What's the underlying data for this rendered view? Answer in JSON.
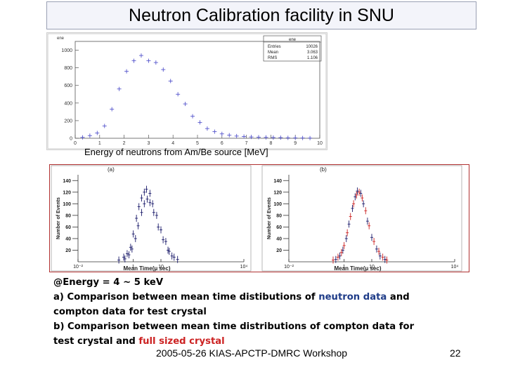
{
  "slide": {
    "title": "Neutron Calibration facility in SNU",
    "caption_top": "Energy of neutrons from Am/Be source [MeV]",
    "footer": "2005-05-26 KIAS-APCTP-DMRC Workshop",
    "page_number": "22"
  },
  "text": {
    "line1": "@Energy = 4 ~ 5 keV",
    "line2_pre": "a) Comparison between mean time distibutions of ",
    "line2_hl": "neutron data",
    "line2_post": " and",
    "line3": "compton data  for test crystal",
    "line4": "b) Comparison between mean time distributions of compton data for",
    "line5_pre": "test crystal and ",
    "line5_hl": "full sized crystal",
    "colors": {
      "blue": "#1f3c88",
      "red": "#cc2222"
    }
  },
  "chart_data": [
    {
      "type": "scatter",
      "title": "ene",
      "stats": {
        "name": "ene",
        "rows": [
          {
            "label": "Entries",
            "value": "10026"
          },
          {
            "label": "Mean",
            "value": "3.063"
          },
          {
            "label": "RMS",
            "value": "1.106"
          }
        ]
      },
      "xlim": [
        0,
        10
      ],
      "ylim": [
        0,
        1100
      ],
      "xticks": [
        "0",
        "1",
        "2",
        "3",
        "4",
        "5",
        "6",
        "7",
        "8",
        "9",
        "10"
      ],
      "yticks": [
        {
          "v": 0,
          "label": "0"
        },
        {
          "v": 200,
          "label": "200"
        },
        {
          "v": 400,
          "label": "400"
        },
        {
          "v": 600,
          "label": "600"
        },
        {
          "v": 800,
          "label": "800"
        },
        {
          "v": 1000,
          "label": "1000"
        }
      ],
      "color": "#5555cc",
      "x": [
        0.3,
        0.6,
        0.9,
        1.2,
        1.5,
        1.8,
        2.1,
        2.4,
        2.7,
        3.0,
        3.3,
        3.6,
        3.9,
        4.2,
        4.5,
        4.8,
        5.1,
        5.4,
        5.7,
        6.0,
        6.3,
        6.6,
        6.9,
        7.2,
        7.5,
        7.8,
        8.1,
        8.4,
        8.7,
        9.0,
        9.3,
        9.6
      ],
      "y": [
        10,
        30,
        60,
        140,
        330,
        560,
        760,
        880,
        940,
        880,
        860,
        780,
        650,
        500,
        390,
        250,
        180,
        110,
        75,
        50,
        35,
        25,
        20,
        15,
        12,
        10,
        8,
        7,
        5,
        4,
        3,
        2
      ]
    },
    {
      "type": "scatter",
      "panel_label": "(a)",
      "xlabel": "Mean Time(μ sec)",
      "ylabel": "Number of Events",
      "xscale": "log",
      "xlim": [
        0.01,
        10000
      ],
      "ylim": [
        0,
        150
      ],
      "xticks": [
        "10⁻²",
        "1",
        "10",
        "10⁴"
      ],
      "yticks": [
        {
          "v": 20,
          "label": "20"
        },
        {
          "v": 40,
          "label": "40"
        },
        {
          "v": 60,
          "label": "60"
        },
        {
          "v": 80,
          "label": "80"
        },
        {
          "v": 100,
          "label": "100"
        },
        {
          "v": 120,
          "label": "120"
        },
        {
          "v": 140,
          "label": "140"
        }
      ],
      "series": [
        {
          "color": "#1a1a6a",
          "x": [
            0.3,
            0.45,
            0.6,
            0.8,
            1.0,
            1.3,
            1.6,
            2.0,
            2.5,
            3.0,
            4.0,
            5.0,
            7.0,
            10,
            15,
            20,
            30
          ],
          "y": [
            3,
            8,
            14,
            25,
            48,
            75,
            95,
            110,
            120,
            125,
            118,
            100,
            80,
            55,
            35,
            18,
            8
          ]
        },
        {
          "color": "#1a1a6a",
          "x": [
            0.5,
            0.7,
            0.9,
            1.2,
            1.5,
            2.0,
            2.5,
            3.2,
            4.0,
            5.5,
            8,
            12,
            18,
            25,
            40
          ],
          "y": [
            5,
            12,
            22,
            40,
            62,
            85,
            100,
            108,
            102,
            85,
            60,
            38,
            20,
            10,
            4
          ]
        }
      ]
    },
    {
      "type": "scatter",
      "panel_label": "(b)",
      "xlabel": "Mean Time(μ sec)",
      "ylabel": "Number of Events",
      "xscale": "log",
      "xlim": [
        0.01,
        10000
      ],
      "ylim": [
        0,
        150
      ],
      "xticks": [
        "10⁻²",
        "1",
        "10",
        "10⁴"
      ],
      "yticks": [
        {
          "v": 20,
          "label": "20"
        },
        {
          "v": 40,
          "label": "40"
        },
        {
          "v": 60,
          "label": "60"
        },
        {
          "v": 80,
          "label": "80"
        },
        {
          "v": 100,
          "label": "100"
        },
        {
          "v": 120,
          "label": "120"
        },
        {
          "v": 140,
          "label": "140"
        }
      ],
      "series": [
        {
          "color": "#1a1a6a",
          "x": [
            0.5,
            0.7,
            0.9,
            1.2,
            1.5,
            2.0,
            2.5,
            3.0,
            4.0,
            5.0,
            7.0,
            10,
            15,
            20,
            30
          ],
          "y": [
            4,
            10,
            20,
            40,
            65,
            92,
            112,
            122,
            118,
            100,
            70,
            42,
            22,
            10,
            4
          ]
        },
        {
          "color": "#cc2222",
          "x": [
            0.4,
            0.6,
            0.8,
            1.0,
            1.3,
            1.7,
            2.2,
            2.8,
            3.5,
            4.5,
            6,
            8,
            12,
            18,
            25,
            35
          ],
          "y": [
            3,
            8,
            16,
            28,
            50,
            78,
            100,
            115,
            120,
            110,
            88,
            62,
            35,
            18,
            8,
            3
          ]
        }
      ]
    }
  ]
}
